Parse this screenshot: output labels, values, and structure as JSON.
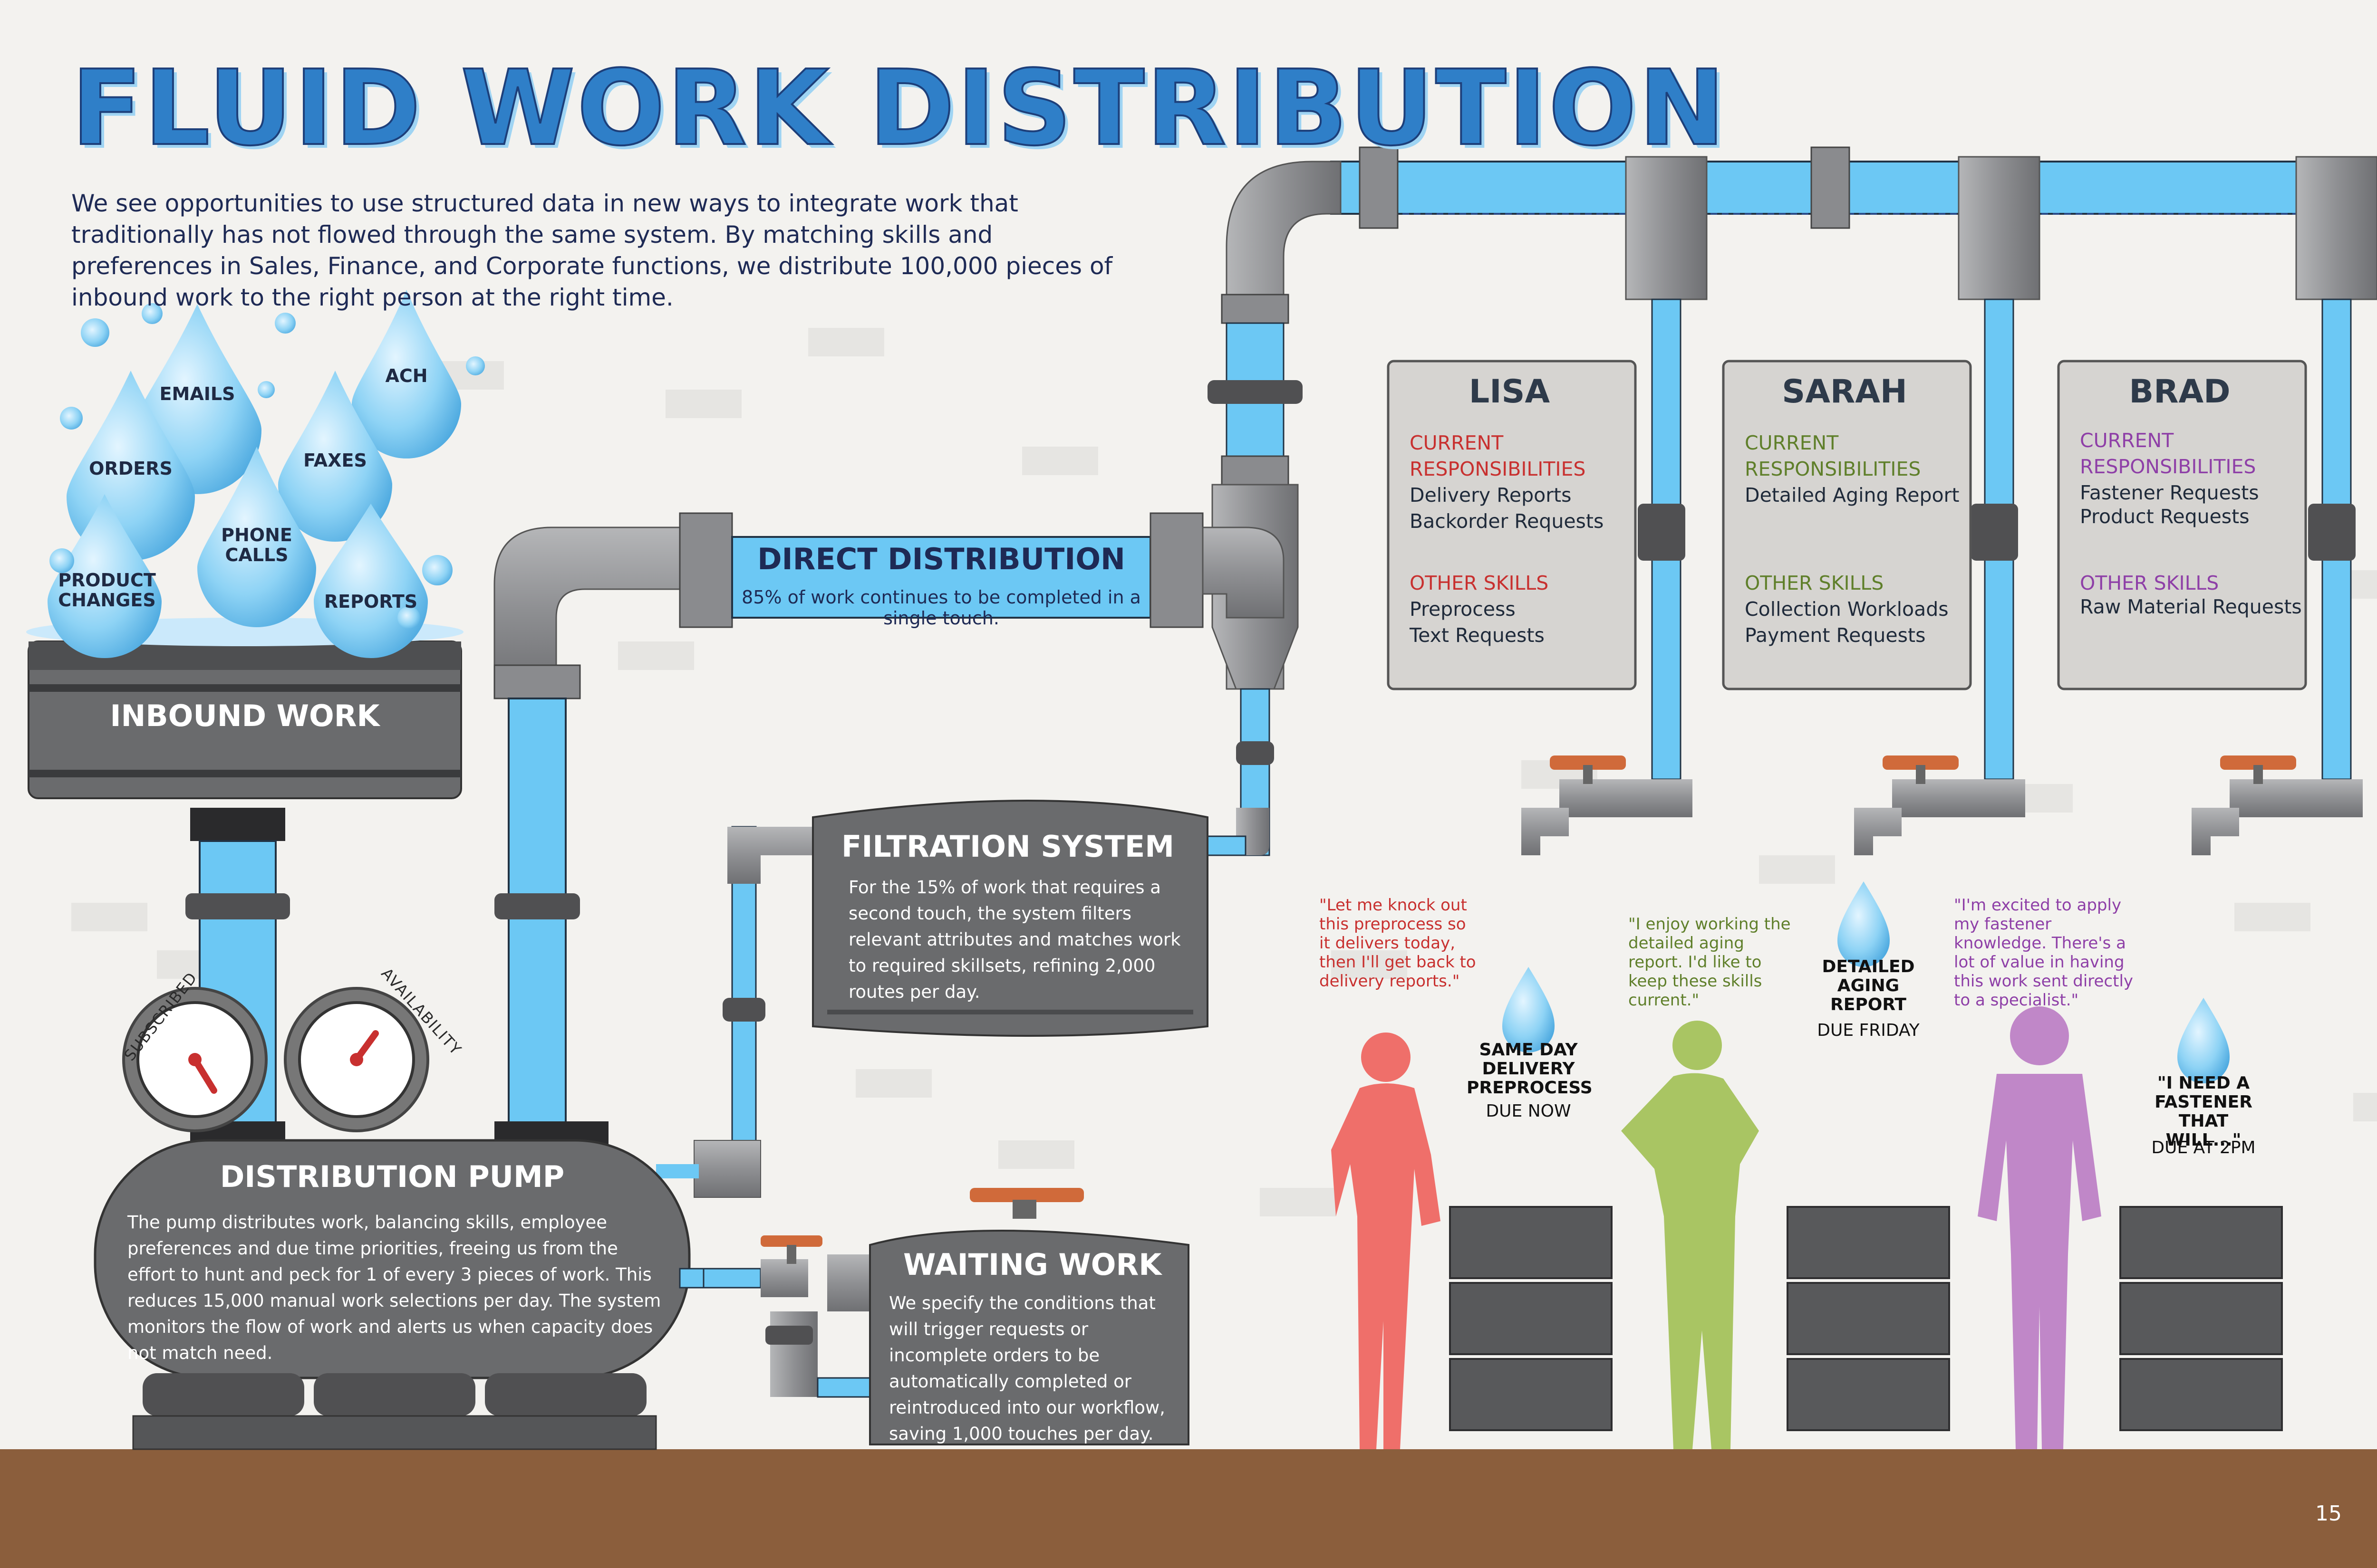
{
  "page": {
    "title": "FLUID WORK DISTRIBUTION",
    "intro": "We see opportunities to use structured data in new ways to integrate work that traditionally has not flowed through the same system. By matching skills and preferences in Sales, Finance, and Corporate functions, we distribute 100,000 pieces of inbound work to the right person at the right time.",
    "page_number": "15"
  },
  "inbound": {
    "drops": [
      {
        "label": "EMAILS"
      },
      {
        "label": "ACH"
      },
      {
        "label": "ORDERS"
      },
      {
        "label": "FAXES"
      },
      {
        "label": "PHONE CALLS"
      },
      {
        "label": "PRODUCT CHANGES"
      },
      {
        "label": "REPORTS"
      }
    ],
    "tank_label": "INBOUND WORK"
  },
  "gauges": {
    "left": "SUBSCRIBED",
    "right": "AVAILABILITY"
  },
  "pump": {
    "title": "DISTRIBUTION PUMP",
    "text": "The pump distributes work, balancing skills, employee preferences and due time priorities, freeing us from the effort to hunt and peck for 1 of every 3 pieces of work. This reduces 15,000 manual work selections per day. The system monitors the flow of work and alerts us when capacity does not match need."
  },
  "direct": {
    "title": "DIRECT DISTRIBUTION",
    "text": "85% of work continues to be completed in a single touch."
  },
  "filtration": {
    "title": "FILTRATION SYSTEM",
    "text": "For the 15% of work that requires a second touch, the system filters relevant attributes and matches work to required skillsets, refining 2,000 routes per day."
  },
  "waiting": {
    "title": "WAITING WORK",
    "text": "We specify the conditions that will trigger requests or incomplete orders to be automatically completed or reintroduced into our workflow, saving 1,000 touches per day."
  },
  "people": [
    {
      "name": "LISA",
      "color": "#c8302f",
      "current_label": "CURRENT RESPONSIBILITIES",
      "current": [
        "Delivery Reports",
        "Backorder Requests"
      ],
      "other_label": "OTHER SKILLS",
      "other": [
        "Preprocess",
        "Text Requests"
      ],
      "quote": "\"Let me knock out this preprocess so it delivers today, then I'll get back to delivery reports.\"",
      "task": "SAME DAY DELIVERY PREPROCESS",
      "due": "DUE NOW",
      "silhouette": "#ef6f6a"
    },
    {
      "name": "SARAH",
      "color": "#5f7f2a",
      "current_label": "CURRENT RESPONSIBILITIES",
      "current": [
        "Detailed Aging Report"
      ],
      "other_label": "OTHER SKILLS",
      "other": [
        "Collection Workloads",
        "Payment Requests"
      ],
      "quote": "\"I enjoy working the detailed aging report. I'd like to keep these skills current.\"",
      "task": "DETAILED AGING REPORT",
      "due": "DUE FRIDAY",
      "silhouette": "#a9c563"
    },
    {
      "name": "BRAD",
      "color": "#8e3fa7",
      "current_label": "CURRENT RESPONSIBILITIES",
      "current": [
        "Fastener Requests",
        "Product Requests"
      ],
      "other_label": "OTHER SKILLS",
      "other": [
        "Raw Material Requests"
      ],
      "quote": "\"I'm excited to apply my fastener knowledge. There's a lot of value in having this work sent directly to a specialist.\"",
      "task": "\"I NEED A FASTENER THAT WILL...\"",
      "due": "DUE AT 2PM",
      "silhouette": "#c087c8"
    }
  ],
  "colors": {
    "water": "#6cc8f4",
    "pipe": "#9a9b9e",
    "dark_metal": "#5e5e60",
    "valve": "#d06a3a",
    "floor": "#8b5e3c",
    "navy": "#1e2a55"
  }
}
